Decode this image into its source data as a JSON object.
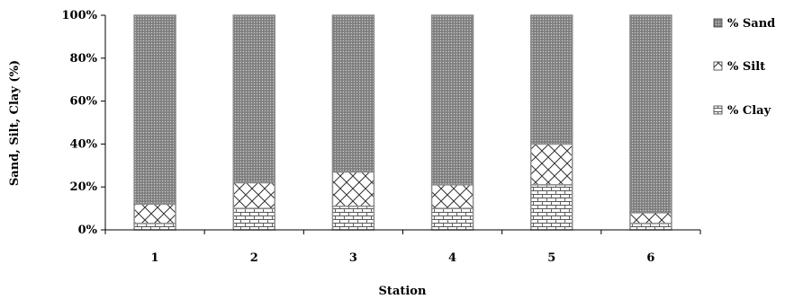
{
  "chart_data": {
    "type": "bar",
    "stacked": true,
    "percent": true,
    "categories": [
      "1",
      "2",
      "3",
      "4",
      "5",
      "6"
    ],
    "series": [
      {
        "name": "% Clay",
        "values": [
          3,
          10,
          11,
          10,
          21,
          3
        ],
        "pattern": "brick"
      },
      {
        "name": "% Silt",
        "values": [
          9,
          12,
          16,
          11,
          19,
          5
        ],
        "pattern": "diagonal-cross"
      },
      {
        "name": "% Sand",
        "values": [
          88,
          78,
          73,
          79,
          60,
          92
        ],
        "pattern": "dense-dots"
      }
    ],
    "title": "",
    "xlabel": "Station",
    "ylabel": "Sand, Silt, Clay (%)",
    "ylim": [
      0,
      100
    ],
    "yticks": [
      "0%",
      "20%",
      "40%",
      "60%",
      "80%",
      "100%"
    ],
    "grid": false,
    "legend_position": "right",
    "legend_order": [
      "% Sand",
      "% Silt",
      "% Clay"
    ],
    "colors": {
      "fill": "#ffffff",
      "stroke": "#8c8c8c",
      "sand": "#8a8a8a",
      "axis": "#000000"
    }
  }
}
